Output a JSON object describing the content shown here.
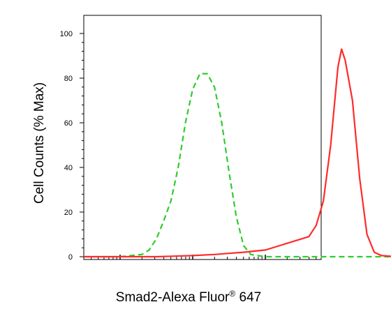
{
  "chart_data": {
    "type": "line",
    "title": "",
    "xlabel_main": "Smad2-Alexa Fluor",
    "xlabel_sup": "®",
    "xlabel_suffix": " 647",
    "ylabel": "Cell Counts (% Max)",
    "ylim": [
      0,
      100
    ],
    "xlim": [
      -0.5,
      5
    ],
    "x_scale": "log",
    "y_ticks": [
      0,
      20,
      40,
      60,
      80,
      100
    ],
    "y_tick_labels": [
      "0",
      "20",
      "40",
      "60",
      "80",
      "100"
    ],
    "x_decades": [
      0,
      1,
      2,
      3,
      4
    ],
    "grid": false,
    "legend": "none",
    "series": [
      {
        "color": "#2ecc2e",
        "style": "dashed",
        "x": [
          -0.5,
          0.0,
          0.15,
          0.3,
          0.4,
          0.5,
          0.6,
          0.7,
          0.8,
          0.9,
          1.0,
          1.1,
          1.2,
          1.3,
          1.4,
          1.5,
          1.6,
          1.7,
          1.8,
          1.9,
          2.0,
          2.5,
          3.0,
          3.5,
          4.0,
          4.5,
          5.0
        ],
        "values": [
          0,
          0,
          0.5,
          1,
          3,
          8,
          16,
          25,
          40,
          60,
          75,
          82,
          82,
          76,
          60,
          38,
          18,
          5,
          1,
          0.5,
          0,
          0,
          0,
          0,
          0,
          0,
          0
        ]
      },
      {
        "color": "#ff2a2a",
        "style": "solid",
        "x": [
          -0.5,
          0.5,
          1.0,
          1.3,
          1.5,
          1.7,
          2.0,
          2.2,
          2.4,
          2.6,
          2.7,
          2.8,
          2.9,
          3.0,
          3.05,
          3.1,
          3.2,
          3.3,
          3.4,
          3.5,
          3.6,
          3.8,
          4.0,
          4.5,
          5.0
        ],
        "values": [
          0,
          0,
          0.5,
          1,
          1.5,
          2,
          3,
          5,
          7,
          9,
          14,
          25,
          50,
          85,
          93,
          88,
          70,
          35,
          10,
          2,
          0.5,
          0,
          0,
          0,
          0
        ]
      }
    ]
  }
}
